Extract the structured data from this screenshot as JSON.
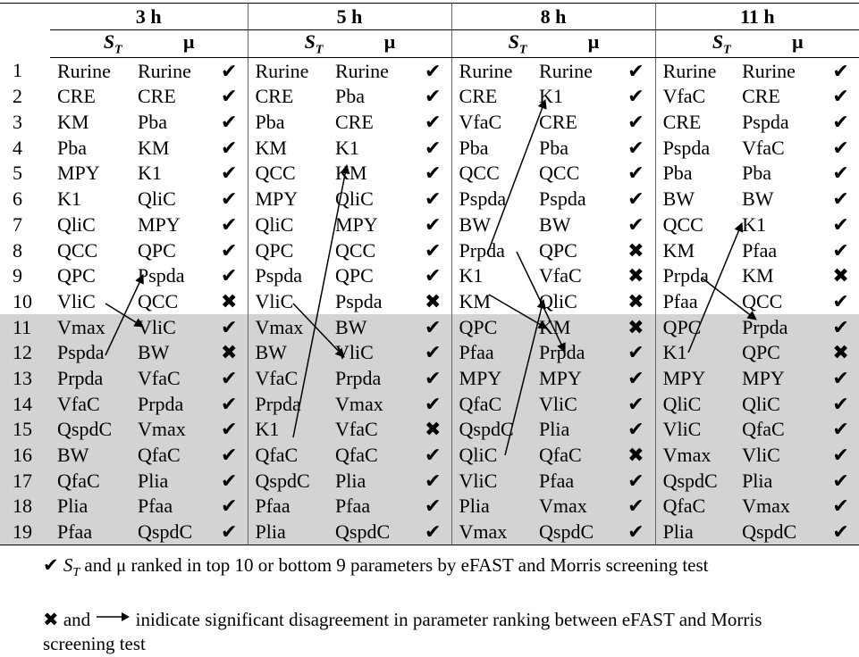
{
  "groups": [
    "3 h",
    "5 h",
    "8 h",
    "11 h"
  ],
  "col_st": "S",
  "col_st_sub": "T",
  "col_mu": "μ",
  "check_symbol": "✔",
  "cross_symbol": "✖",
  "rows": [
    {
      "n": "1",
      "c": [
        [
          "Rurine",
          "Rurine",
          "✔"
        ],
        [
          "Rurine",
          "Rurine",
          "✔"
        ],
        [
          "Rurine",
          "Rurine",
          "✔"
        ],
        [
          "Rurine",
          "Rurine",
          "✔"
        ]
      ]
    },
    {
      "n": "2",
      "c": [
        [
          "CRE",
          "CRE",
          "✔"
        ],
        [
          "CRE",
          "Pba",
          "✔"
        ],
        [
          "CRE",
          "K1",
          "✔"
        ],
        [
          "VfaC",
          "CRE",
          "✔"
        ]
      ]
    },
    {
      "n": "3",
      "c": [
        [
          "KM",
          "Pba",
          "✔"
        ],
        [
          "Pba",
          "CRE",
          "✔"
        ],
        [
          "VfaC",
          "CRE",
          "✔"
        ],
        [
          "CRE",
          "Pspda",
          "✔"
        ]
      ]
    },
    {
      "n": "4",
      "c": [
        [
          "Pba",
          "KM",
          "✔"
        ],
        [
          "KM",
          "K1",
          "✔"
        ],
        [
          "Pba",
          "Pba",
          "✔"
        ],
        [
          "Pspda",
          "VfaC",
          "✔"
        ]
      ]
    },
    {
      "n": "5",
      "c": [
        [
          "MPY",
          "K1",
          "✔"
        ],
        [
          "QCC",
          "KM",
          "✔"
        ],
        [
          "QCC",
          "QCC",
          "✔"
        ],
        [
          "Pba",
          "Pba",
          "✔"
        ]
      ]
    },
    {
      "n": "6",
      "c": [
        [
          "K1",
          "QliC",
          "✔"
        ],
        [
          "MPY",
          "QliC",
          "✔"
        ],
        [
          "Pspda",
          "Pspda",
          "✔"
        ],
        [
          "BW",
          "BW",
          "✔"
        ]
      ]
    },
    {
      "n": "7",
      "c": [
        [
          "QliC",
          "MPY",
          "✔"
        ],
        [
          "QliC",
          "MPY",
          "✔"
        ],
        [
          "BW",
          "BW",
          "✔"
        ],
        [
          "QCC",
          "K1",
          "✔"
        ]
      ]
    },
    {
      "n": "8",
      "c": [
        [
          "QCC",
          "QPC",
          "✔"
        ],
        [
          "QPC",
          "QCC",
          "✔"
        ],
        [
          "Prpda",
          "QPC",
          "✖"
        ],
        [
          "KM",
          "Pfaa",
          "✔"
        ]
      ]
    },
    {
      "n": "9",
      "c": [
        [
          "QPC",
          "Pspda",
          "✔"
        ],
        [
          "Pspda",
          "QPC",
          "✔"
        ],
        [
          "K1",
          "VfaC",
          "✖"
        ],
        [
          "Prpda",
          "KM",
          "✖"
        ]
      ]
    },
    {
      "n": "10",
      "c": [
        [
          "VliC",
          "QCC",
          "✖"
        ],
        [
          "VliC",
          "Pspda",
          "✖"
        ],
        [
          "KM",
          "QliC",
          "✖"
        ],
        [
          "Pfaa",
          "QCC",
          "✔"
        ]
      ]
    },
    {
      "n": "11",
      "c": [
        [
          "Vmax",
          "VliC",
          "✔"
        ],
        [
          "Vmax",
          "BW",
          "✔"
        ],
        [
          "QPC",
          "KM",
          "✖"
        ],
        [
          "QPC",
          "Prpda",
          "✔"
        ]
      ]
    },
    {
      "n": "12",
      "c": [
        [
          "Pspda",
          "BW",
          "✖"
        ],
        [
          "BW",
          "VliC",
          "✔"
        ],
        [
          "Pfaa",
          "Prpda",
          "✔"
        ],
        [
          "K1",
          "QPC",
          "✖"
        ]
      ]
    },
    {
      "n": "13",
      "c": [
        [
          "Prpda",
          "VfaC",
          "✔"
        ],
        [
          "VfaC",
          "Prpda",
          "✔"
        ],
        [
          "MPY",
          "MPY",
          "✔"
        ],
        [
          "MPY",
          "MPY",
          "✔"
        ]
      ]
    },
    {
      "n": "14",
      "c": [
        [
          "VfaC",
          "Prpda",
          "✔"
        ],
        [
          "Prpda",
          "Vmax",
          "✔"
        ],
        [
          "QfaC",
          "VliC",
          "✔"
        ],
        [
          "QliC",
          "QliC",
          "✔"
        ]
      ]
    },
    {
      "n": "15",
      "c": [
        [
          "QspdC",
          "Vmax",
          "✔"
        ],
        [
          "K1",
          "VfaC",
          "✖"
        ],
        [
          "QspdC",
          "Plia",
          "✔"
        ],
        [
          "VliC",
          "QfaC",
          "✔"
        ]
      ]
    },
    {
      "n": "16",
      "c": [
        [
          "BW",
          "QfaC",
          "✔"
        ],
        [
          "QfaC",
          "QfaC",
          "✔"
        ],
        [
          "QliC",
          "QfaC",
          "✖"
        ],
        [
          "Vmax",
          "VliC",
          "✔"
        ]
      ]
    },
    {
      "n": "17",
      "c": [
        [
          "QfaC",
          "Plia",
          "✔"
        ],
        [
          "QspdC",
          "Plia",
          "✔"
        ],
        [
          "VliC",
          "Pfaa",
          "✔"
        ],
        [
          "QspdC",
          "Plia",
          "✔"
        ]
      ]
    },
    {
      "n": "18",
      "c": [
        [
          "Plia",
          "Pfaa",
          "✔"
        ],
        [
          "Pfaa",
          "Pfaa",
          "✔"
        ],
        [
          "Plia",
          "Vmax",
          "✔"
        ],
        [
          "QfaC",
          "Vmax",
          "✔"
        ]
      ]
    },
    {
      "n": "19",
      "c": [
        [
          "Pfaa",
          "QspdC",
          "✔"
        ],
        [
          "Plia",
          "QspdC",
          "✔"
        ],
        [
          "Vmax",
          "QspdC",
          "✔"
        ],
        [
          "Plia",
          "QspdC",
          "✔"
        ]
      ]
    }
  ],
  "footnotes": {
    "note1_pre": "✔",
    "note1_st": "S",
    "note1_st_sub": "T",
    "note1_text": " and μ ranked in top 10 or bottom 9 parameters by eFAST and Morris screening test",
    "note2_pre": "✖ and",
    "note2_text": "inidicate significant disagreement in parameter ranking between eFAST and Morris screening test"
  }
}
